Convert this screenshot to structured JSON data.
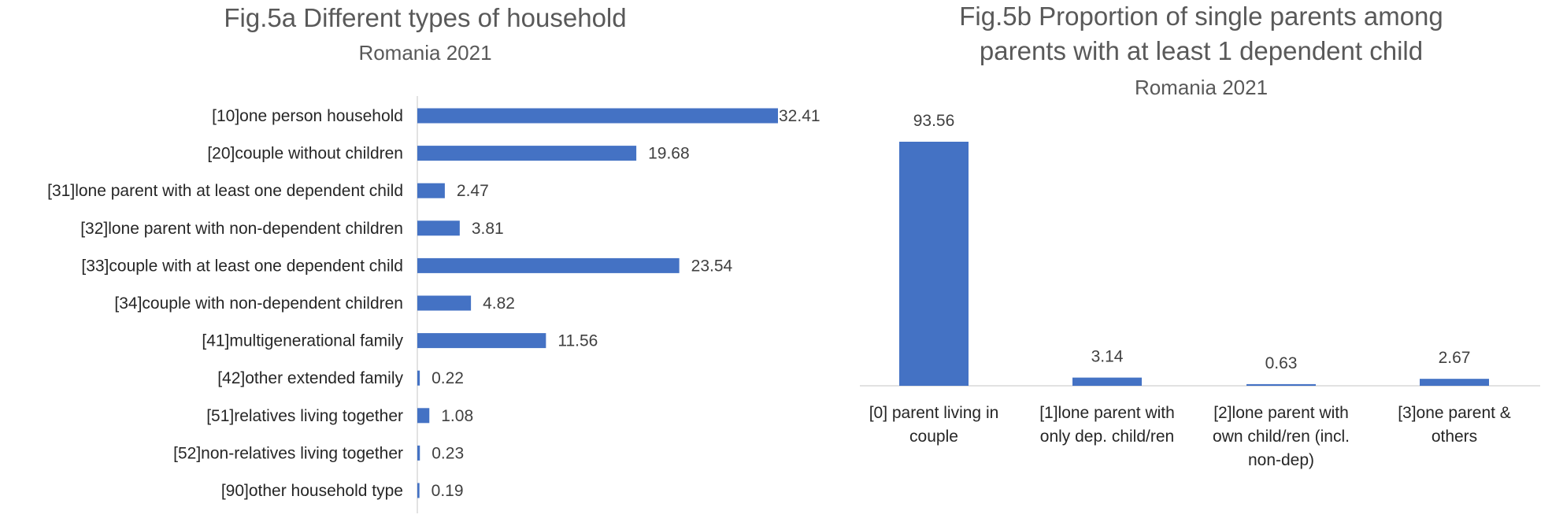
{
  "chart_data": [
    {
      "type": "bar",
      "orientation": "horizontal",
      "title": "Fig.5a Different types of household",
      "subtitle": "Romania 2021",
      "categories": [
        "[10]one person household",
        "[20]couple without children",
        "[31]lone parent with at least one dependent child",
        "[32]lone parent with non-dependent children",
        "[33]couple with at least one dependent child",
        "[34]couple with non-dependent children",
        "[41]multigenerational family",
        "[42]other extended family",
        "[51]relatives living together",
        "[52]non-relatives living together",
        "[90]other household type"
      ],
      "values": [
        32.41,
        19.68,
        2.47,
        3.81,
        23.54,
        4.82,
        11.56,
        0.22,
        1.08,
        0.23,
        0.19
      ],
      "value_labels": [
        "32.41",
        "19.68",
        "2.47",
        "3.81",
        "23.54",
        "4.82",
        "11.56",
        "0.22",
        "1.08",
        "0.23",
        "0.19"
      ],
      "xlim": [
        0,
        32.41
      ],
      "grid": false,
      "bar_color": "#4472c4"
    },
    {
      "type": "bar",
      "orientation": "vertical",
      "title_lines": [
        "Fig.5b Proportion of single parents among",
        "parents with at least 1 dependent child"
      ],
      "subtitle": "Romania 2021",
      "categories": [
        [
          "[0] parent living in",
          "couple"
        ],
        [
          "[1]lone parent with",
          "only dep. child/ren"
        ],
        [
          "[2]lone parent with",
          "own child/ren (incl.",
          "non-dep)"
        ],
        [
          "[3]one parent &",
          "others"
        ]
      ],
      "values": [
        93.56,
        3.14,
        0.63,
        2.67
      ],
      "value_labels": [
        "93.56",
        "3.14",
        "0.63",
        "2.67"
      ],
      "ylim": [
        0,
        93.56
      ],
      "grid": false,
      "bar_color": "#4472c4"
    }
  ]
}
